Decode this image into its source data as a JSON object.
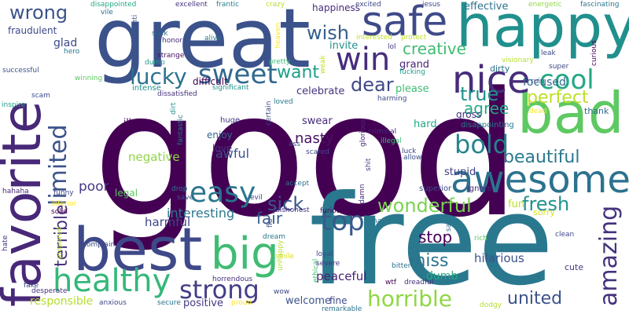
{
  "words": [
    {
      "text": "good",
      "color": "#440154"
    },
    {
      "text": "free",
      "color": "#2a788e"
    },
    {
      "text": "great",
      "color": "#3b528b"
    },
    {
      "text": "favorite",
      "color": "#482878"
    },
    {
      "text": "best",
      "color": "#3e4989"
    },
    {
      "text": "happy",
      "color": "#21908d"
    },
    {
      "text": "bad",
      "color": "#5ec962"
    },
    {
      "text": "big",
      "color": "#3fbc73"
    },
    {
      "text": "awesome",
      "color": "#2c728e"
    },
    {
      "text": "safe",
      "color": "#3e4a89"
    },
    {
      "text": "nice",
      "color": "#472c7a"
    },
    {
      "text": "win",
      "color": "#472d7b"
    },
    {
      "text": "healthy",
      "color": "#35b779"
    },
    {
      "text": "easy",
      "color": "#2a768e"
    },
    {
      "text": "sweet",
      "color": "#31688e"
    },
    {
      "text": "cool",
      "color": "#22a884"
    },
    {
      "text": "limited",
      "color": "#3b528b"
    },
    {
      "text": "bold",
      "color": "#25848e"
    },
    {
      "text": "strong",
      "color": "#433e85"
    },
    {
      "text": "horrible",
      "color": "#90d743"
    },
    {
      "text": "top",
      "color": "#38598c"
    },
    {
      "text": "amazing",
      "color": "#46327e"
    },
    {
      "text": "lucky",
      "color": "#2c728e"
    },
    {
      "text": "wrong",
      "color": "#3b528b"
    },
    {
      "text": "wish",
      "color": "#355f8d"
    },
    {
      "text": "dear",
      "color": "#3f4889"
    },
    {
      "text": "true",
      "color": "#21918c"
    },
    {
      "text": "perfect",
      "color": "#bddf26"
    },
    {
      "text": "wonderful",
      "color": "#7ad151"
    },
    {
      "text": "united",
      "color": "#3b528b"
    },
    {
      "text": "sick",
      "color": "#3a548c"
    },
    {
      "text": "fresh",
      "color": "#21918c"
    },
    {
      "text": "beautiful",
      "color": "#29798e"
    },
    {
      "text": "miss",
      "color": "#2c728e"
    },
    {
      "text": "terrible",
      "color": "#46307e"
    },
    {
      "text": "want",
      "color": "#1f9e89"
    },
    {
      "text": "creative",
      "color": "#3fbc73"
    },
    {
      "text": "agree",
      "color": "#22a884"
    },
    {
      "text": "fair",
      "color": "#38598c"
    },
    {
      "text": "stop",
      "color": "#440154"
    },
    {
      "text": "interesting",
      "color": "#2a788e"
    },
    {
      "text": "nasty",
      "color": "#471063"
    },
    {
      "text": "negative",
      "color": "#8fd744"
    },
    {
      "text": "poor",
      "color": "#443983"
    },
    {
      "text": "awful",
      "color": "#3b528b"
    },
    {
      "text": "harmful",
      "color": "#3f4788"
    },
    {
      "text": "hilarious",
      "color": "#3b528b"
    },
    {
      "text": "peaceful",
      "color": "#482173"
    },
    {
      "text": "dumb",
      "color": "#22a884"
    },
    {
      "text": "responsible",
      "color": "#b5de2b"
    },
    {
      "text": "welcome",
      "color": "#3b528b"
    },
    {
      "text": "positive",
      "color": "#443983"
    },
    {
      "text": "glad",
      "color": "#3e4989"
    },
    {
      "text": "fraudulent",
      "color": "#3e4989"
    },
    {
      "text": "focused",
      "color": "#30698e"
    },
    {
      "text": "celebrate",
      "color": "#46337f"
    },
    {
      "text": "grand",
      "color": "#482475"
    },
    {
      "text": "happiness",
      "color": "#472d7b"
    },
    {
      "text": "effective",
      "color": "#2c728e"
    },
    {
      "text": "invite",
      "color": "#21918c"
    },
    {
      "text": "please",
      "color": "#3fbc73"
    },
    {
      "text": "fun",
      "color": "#bddf26"
    },
    {
      "text": "sorry",
      "color": "#d8e219"
    },
    {
      "text": "legal",
      "color": "#5ec962"
    },
    {
      "text": "swear",
      "color": "#472d7b"
    },
    {
      "text": "stupid",
      "color": "#433e85"
    },
    {
      "text": "hard",
      "color": "#22a884"
    },
    {
      "text": "gross",
      "color": "#46307e"
    },
    {
      "text": "enjoy",
      "color": "#31688e"
    },
    {
      "text": "love",
      "color": "#46327e"
    },
    {
      "text": "difficult",
      "color": "#440154"
    },
    {
      "text": "thank",
      "color": "#31688e"
    },
    {
      "text": "cute",
      "color": "#443983"
    },
    {
      "text": "fine",
      "color": "#3e4989"
    },
    {
      "text": "dirty",
      "color": "#2c728e"
    },
    {
      "text": "intense",
      "color": "#21918c"
    },
    {
      "text": "disappointing",
      "color": "#2a788e"
    },
    {
      "text": "ignore",
      "color": "#482878"
    },
    {
      "text": "superior",
      "color": "#3e4989"
    },
    {
      "text": "ill",
      "color": "#440154"
    },
    {
      "text": "huge",
      "color": "#443983"
    },
    {
      "text": "disappointed",
      "color": "#22a884"
    },
    {
      "text": "excellent",
      "color": "#46327e"
    },
    {
      "text": "frantic",
      "color": "#287c8e"
    },
    {
      "text": "crazy",
      "color": "#b5de2b"
    },
    {
      "text": "excited",
      "color": "#3e4989"
    },
    {
      "text": "jesus",
      "color": "#3e4989"
    },
    {
      "text": "energetic",
      "color": "#8fd744"
    },
    {
      "text": "fascinating",
      "color": "#2a788e"
    },
    {
      "text": "vile",
      "color": "#2c728e"
    },
    {
      "text": "anti",
      "color": "#3b528b"
    },
    {
      "text": "suck",
      "color": "#31688e"
    },
    {
      "text": "alive",
      "color": "#2a788e"
    },
    {
      "text": "honor",
      "color": "#472d7b"
    },
    {
      "text": "heaven",
      "color": "#fde725"
    },
    {
      "text": "interested",
      "color": "#bddf26"
    },
    {
      "text": "protect",
      "color": "#bddf26"
    },
    {
      "text": "lol",
      "color": "#443983"
    },
    {
      "text": "hero",
      "color": "#2a788e"
    },
    {
      "text": "strange",
      "color": "#471164"
    },
    {
      "text": "dump",
      "color": "#1f9e89"
    },
    {
      "text": "pretty",
      "color": "#3fbc73"
    },
    {
      "text": "weak",
      "color": "#bddf26"
    },
    {
      "text": "fucking",
      "color": "#1f9e89"
    },
    {
      "text": "leak",
      "color": "#3e4989"
    },
    {
      "text": "super",
      "color": "#3e4989"
    },
    {
      "text": "curious",
      "color": "#440154"
    },
    {
      "text": "visionary",
      "color": "#b5de2b"
    },
    {
      "text": "successful",
      "color": "#3b528b"
    },
    {
      "text": "winning",
      "color": "#5ec962"
    },
    {
      "text": "inspire",
      "color": "#1f9e89"
    },
    {
      "text": "scam",
      "color": "#3e4989"
    },
    {
      "text": "significant",
      "color": "#21918c"
    },
    {
      "text": "dissatisfied",
      "color": "#46327e"
    },
    {
      "text": "loved",
      "color": "#2a788e"
    },
    {
      "text": "certain",
      "color": "#3e4989"
    },
    {
      "text": "ruin",
      "color": "#3e4989"
    },
    {
      "text": "harming",
      "color": "#3e4989"
    },
    {
      "text": "dead",
      "color": "#fde725"
    },
    {
      "text": "criminal",
      "color": "#482878"
    },
    {
      "text": "illegal",
      "color": "#3fbc73"
    },
    {
      "text": "allow",
      "color": "#3b528b"
    },
    {
      "text": "luck",
      "color": "#3e4989"
    },
    {
      "text": "glorious",
      "color": "#482878"
    },
    {
      "text": "fantastic",
      "color": "#2c728e"
    },
    {
      "text": "dirt",
      "color": "#21918c"
    },
    {
      "text": "ass",
      "color": "#3e4989"
    },
    {
      "text": "scared",
      "color": "#3e4989"
    },
    {
      "text": "shit",
      "color": "#443983"
    },
    {
      "text": "damn",
      "color": "#482878"
    },
    {
      "text": "accept",
      "color": "#2c728e"
    },
    {
      "text": "hahaha",
      "color": "#482878"
    },
    {
      "text": "funny",
      "color": "#3e4989"
    },
    {
      "text": "drop",
      "color": "#2c728e"
    },
    {
      "text": "save",
      "color": "#3b528b"
    },
    {
      "text": "evil",
      "color": "#3e4989"
    },
    {
      "text": "dishonest",
      "color": "#46327e"
    },
    {
      "text": "inferior",
      "color": "#fde725"
    },
    {
      "text": "solid",
      "color": "#440154"
    },
    {
      "text": "complain",
      "color": "#3e4989"
    },
    {
      "text": "prepared",
      "color": "#b5de2b"
    },
    {
      "text": "hate",
      "color": "#46327e"
    },
    {
      "text": "flu",
      "color": "#3e4989"
    },
    {
      "text": "furious",
      "color": "#440154"
    },
    {
      "text": "ha",
      "color": "#2c728e"
    },
    {
      "text": "dream",
      "color": "#2a788e"
    },
    {
      "text": "smile",
      "color": "#d8e219"
    },
    {
      "text": "unhappy",
      "color": "#b5de2b"
    },
    {
      "text": "ethical",
      "color": "#3fbc73"
    },
    {
      "text": "loyal",
      "color": "#3e4989"
    },
    {
      "text": "severe",
      "color": "#46327e"
    },
    {
      "text": "bitter",
      "color": "#2c728e"
    },
    {
      "text": "rich",
      "color": "#5ec962"
    },
    {
      "text": "clean",
      "color": "#3e4989"
    },
    {
      "text": "fake",
      "color": "#3e4989"
    },
    {
      "text": "desperate",
      "color": "#46327e"
    },
    {
      "text": "anxious",
      "color": "#3e4989"
    },
    {
      "text": "secure",
      "color": "#2c728e"
    },
    {
      "text": "horrendous",
      "color": "#46327e"
    },
    {
      "text": "proud",
      "color": "#fde725"
    },
    {
      "text": "wow",
      "color": "#3e4989"
    },
    {
      "text": "wtf",
      "color": "#440154"
    },
    {
      "text": "dreadful",
      "color": "#46327e"
    },
    {
      "text": "remarkable",
      "color": "#2c728e"
    },
    {
      "text": "dodgy",
      "color": "#b5de2b"
    },
    {
      "text": "sad",
      "color": "#2c728e"
    }
  ]
}
